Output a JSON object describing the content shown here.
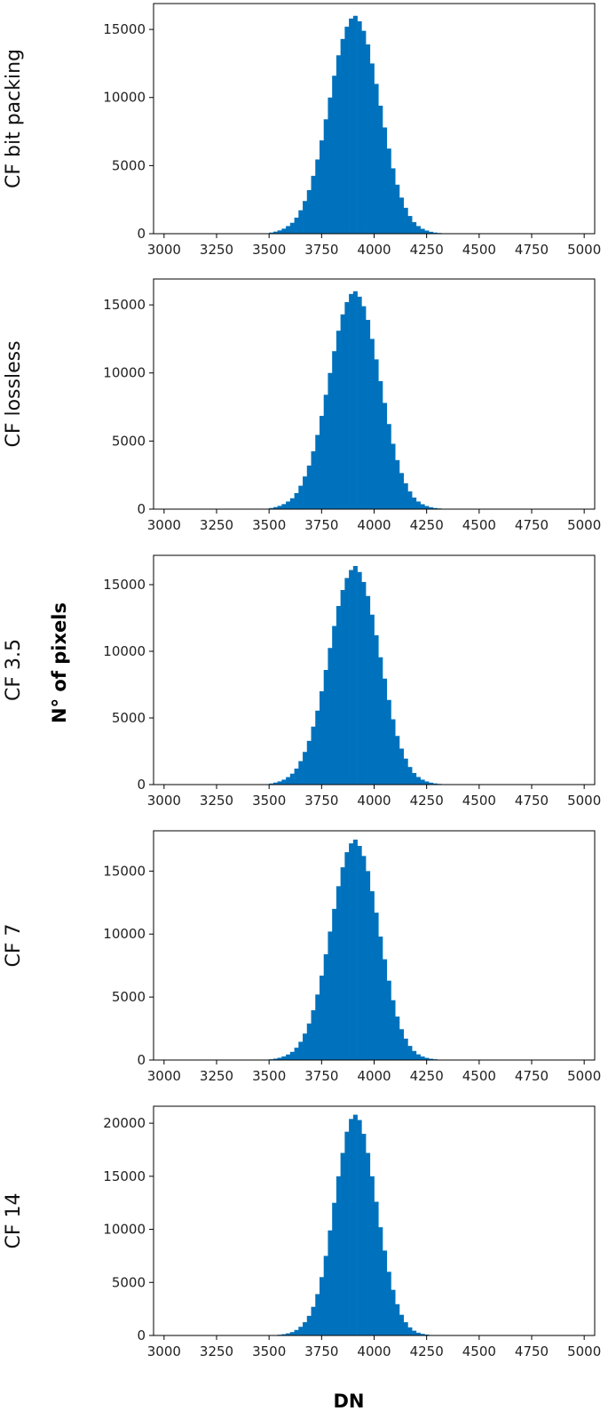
{
  "figure": {
    "xlabel": "DN",
    "ylabel": "N° of pixels",
    "bar_color": "#0072BD"
  },
  "chart_data": [
    {
      "type": "bar",
      "label": "CF bit packing",
      "xlim": [
        2950,
        5050
      ],
      "ylim": [
        0,
        16900
      ],
      "xticks": [
        3000,
        3250,
        3500,
        3750,
        4000,
        4250,
        4500,
        4750,
        5000
      ],
      "yticks": [
        0,
        5000,
        10000,
        15000
      ],
      "bin_width": 20,
      "x": [
        3510,
        3530,
        3550,
        3570,
        3590,
        3610,
        3630,
        3650,
        3670,
        3690,
        3710,
        3730,
        3750,
        3770,
        3790,
        3810,
        3830,
        3850,
        3870,
        3890,
        3910,
        3930,
        3950,
        3970,
        3990,
        4010,
        4030,
        4050,
        4070,
        4090,
        4110,
        4130,
        4150,
        4170,
        4190,
        4210,
        4230,
        4250,
        4270,
        4290,
        4310,
        4330,
        4350
      ],
      "values": [
        80,
        150,
        240,
        370,
        560,
        800,
        1180,
        1720,
        2400,
        3200,
        4250,
        5450,
        6850,
        8400,
        10000,
        11600,
        13100,
        14300,
        15200,
        15800,
        16000,
        15600,
        14900,
        13900,
        12500,
        11000,
        9400,
        7800,
        6250,
        4800,
        3600,
        2650,
        1900,
        1300,
        850,
        560,
        360,
        230,
        140,
        80,
        50,
        30,
        20
      ]
    },
    {
      "type": "bar",
      "label": "CF lossless",
      "xlim": [
        2950,
        5050
      ],
      "ylim": [
        0,
        16900
      ],
      "xticks": [
        3000,
        3250,
        3500,
        3750,
        4000,
        4250,
        4500,
        4750,
        5000
      ],
      "yticks": [
        0,
        5000,
        10000,
        15000
      ],
      "bin_width": 20,
      "x": [
        3510,
        3530,
        3550,
        3570,
        3590,
        3610,
        3630,
        3650,
        3670,
        3690,
        3710,
        3730,
        3750,
        3770,
        3790,
        3810,
        3830,
        3850,
        3870,
        3890,
        3910,
        3930,
        3950,
        3970,
        3990,
        4010,
        4030,
        4050,
        4070,
        4090,
        4110,
        4130,
        4150,
        4170,
        4190,
        4210,
        4230,
        4250,
        4270,
        4290,
        4310,
        4330,
        4350
      ],
      "values": [
        80,
        150,
        240,
        370,
        560,
        800,
        1180,
        1720,
        2400,
        3200,
        4250,
        5450,
        6850,
        8400,
        10000,
        11600,
        13100,
        14300,
        15200,
        15800,
        16000,
        15600,
        14900,
        13900,
        12500,
        11000,
        9400,
        7800,
        6250,
        4800,
        3600,
        2650,
        1900,
        1300,
        850,
        560,
        360,
        230,
        140,
        80,
        50,
        30,
        20
      ]
    },
    {
      "type": "bar",
      "label": "CF 3.5",
      "xlim": [
        2950,
        5050
      ],
      "ylim": [
        0,
        17200
      ],
      "xticks": [
        3000,
        3250,
        3500,
        3750,
        4000,
        4250,
        4500,
        4750,
        5000
      ],
      "yticks": [
        0,
        5000,
        10000,
        15000
      ],
      "bin_width": 20,
      "x": [
        3510,
        3530,
        3550,
        3570,
        3590,
        3610,
        3630,
        3650,
        3670,
        3690,
        3710,
        3730,
        3750,
        3770,
        3790,
        3810,
        3830,
        3850,
        3870,
        3890,
        3910,
        3930,
        3950,
        3970,
        3990,
        4010,
        4030,
        4050,
        4070,
        4090,
        4110,
        4130,
        4150,
        4170,
        4190,
        4210,
        4230,
        4250,
        4270,
        4290,
        4310,
        4330,
        4350
      ],
      "values": [
        80,
        150,
        240,
        370,
        560,
        820,
        1200,
        1760,
        2450,
        3280,
        4350,
        5550,
        7000,
        8600,
        10250,
        11900,
        13400,
        14600,
        15500,
        16100,
        16400,
        15950,
        15200,
        14150,
        12750,
        11200,
        9550,
        7950,
        6350,
        4900,
        3650,
        2700,
        1950,
        1320,
        870,
        570,
        370,
        235,
        145,
        85,
        50,
        30,
        20
      ]
    },
    {
      "type": "bar",
      "label": "CF 7",
      "xlim": [
        2950,
        5050
      ],
      "ylim": [
        0,
        18200
      ],
      "xticks": [
        3000,
        3250,
        3500,
        3750,
        4000,
        4250,
        4500,
        4750,
        5000
      ],
      "yticks": [
        0,
        5000,
        10000,
        15000
      ],
      "bin_width": 20,
      "x": [
        3510,
        3530,
        3550,
        3570,
        3590,
        3610,
        3630,
        3650,
        3670,
        3690,
        3710,
        3730,
        3750,
        3770,
        3790,
        3810,
        3830,
        3850,
        3870,
        3890,
        3910,
        3930,
        3950,
        3970,
        3990,
        4010,
        4030,
        4050,
        4070,
        4090,
        4110,
        4130,
        4150,
        4170,
        4190,
        4210,
        4230,
        4250,
        4270,
        4290,
        4310,
        4330,
        4350
      ],
      "values": [
        60,
        110,
        180,
        290,
        440,
        650,
        980,
        1450,
        2100,
        2900,
        3950,
        5200,
        6700,
        8400,
        10200,
        12000,
        13800,
        15300,
        16500,
        17200,
        17500,
        17000,
        16200,
        15000,
        13400,
        11700,
        9800,
        8000,
        6300,
        4750,
        3450,
        2450,
        1700,
        1120,
        720,
        450,
        280,
        170,
        100,
        60,
        35,
        20,
        12
      ]
    },
    {
      "type": "bar",
      "label": "CF 14",
      "xlim": [
        2950,
        5050
      ],
      "ylim": [
        0,
        21600
      ],
      "xticks": [
        3000,
        3250,
        3500,
        3750,
        4000,
        4250,
        4500,
        4750,
        5000
      ],
      "yticks": [
        0,
        5000,
        10000,
        15000,
        20000
      ],
      "bin_width": 20,
      "x": [
        3510,
        3530,
        3550,
        3570,
        3590,
        3610,
        3630,
        3650,
        3670,
        3690,
        3710,
        3730,
        3750,
        3770,
        3790,
        3810,
        3830,
        3850,
        3870,
        3890,
        3910,
        3930,
        3950,
        3970,
        3990,
        4010,
        4030,
        4050,
        4070,
        4090,
        4110,
        4130,
        4150,
        4170,
        4190,
        4210,
        4230,
        4250,
        4270,
        4290,
        4310,
        4330,
        4350
      ],
      "values": [
        20,
        40,
        70,
        120,
        200,
        320,
        520,
        820,
        1250,
        1850,
        2700,
        3900,
        5500,
        7500,
        9900,
        12500,
        15000,
        17200,
        19200,
        20400,
        20800,
        20300,
        19000,
        17200,
        15000,
        12600,
        10200,
        8000,
        6000,
        4300,
        2950,
        1950,
        1250,
        760,
        450,
        260,
        150,
        85,
        45,
        25,
        15,
        8,
        5
      ]
    }
  ]
}
